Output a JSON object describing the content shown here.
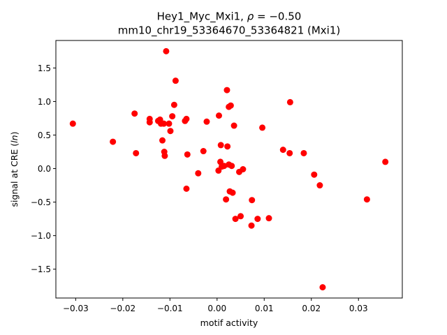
{
  "chart_data": {
    "type": "scatter",
    "title_line1_prefix": "Hey1_Myc_Mxi1, ",
    "title_rho_symbol": "ρ",
    "title_rho_value": " = −0.50",
    "title_line2": "mm10_chr19_53364670_53364821 (Mxi1)",
    "xlabel": "motif activity",
    "ylabel_prefix": "signal at CRE (",
    "ylabel_italic": "ln",
    "ylabel_suffix": ")",
    "xlim": [
      -0.0342,
      0.0393
    ],
    "ylim": [
      -1.93,
      1.91
    ],
    "x_ticks": [
      -0.03,
      -0.02,
      -0.01,
      0.0,
      0.01,
      0.02,
      0.03
    ],
    "x_tick_labels": [
      "−0.03",
      "−0.02",
      "−0.01",
      "0.00",
      "0.01",
      "0.02",
      "0.03"
    ],
    "y_ticks": [
      -1.5,
      -1.0,
      -0.5,
      0.0,
      0.5,
      1.0,
      1.5
    ],
    "y_tick_labels": [
      "−1.5",
      "−1.0",
      "−0.5",
      "0.0",
      "0.5",
      "1.0",
      "1.5"
    ],
    "grid": false,
    "marker_color": "#ff0000",
    "points": [
      {
        "x": -0.0306,
        "y": 0.67
      },
      {
        "x": -0.0221,
        "y": 0.4
      },
      {
        "x": -0.0175,
        "y": 0.82
      },
      {
        "x": -0.0172,
        "y": 0.23
      },
      {
        "x": -0.0143,
        "y": 0.74
      },
      {
        "x": -0.0143,
        "y": 0.69
      },
      {
        "x": -0.0125,
        "y": 0.71
      },
      {
        "x": -0.0121,
        "y": 0.73
      },
      {
        "x": -0.0119,
        "y": 0.67
      },
      {
        "x": -0.0116,
        "y": 0.42
      },
      {
        "x": -0.0113,
        "y": 0.67
      },
      {
        "x": -0.0112,
        "y": 0.25
      },
      {
        "x": -0.0111,
        "y": 0.19
      },
      {
        "x": -0.0108,
        "y": 1.75
      },
      {
        "x": -0.0102,
        "y": 0.67
      },
      {
        "x": -0.0099,
        "y": 0.56
      },
      {
        "x": -0.0095,
        "y": 0.78
      },
      {
        "x": -0.0091,
        "y": 0.95
      },
      {
        "x": -0.0088,
        "y": 1.31
      },
      {
        "x": -0.0068,
        "y": 0.71
      },
      {
        "x": -0.0065,
        "y": 0.74
      },
      {
        "x": -0.0063,
        "y": 0.21
      },
      {
        "x": -0.0065,
        "y": -0.3
      },
      {
        "x": -0.004,
        "y": -0.07
      },
      {
        "x": -0.0029,
        "y": 0.26
      },
      {
        "x": -0.0022,
        "y": 0.7
      },
      {
        "x": 0.0003,
        "y": -0.03
      },
      {
        "x": 0.0004,
        "y": 0.79
      },
      {
        "x": 0.0007,
        "y": 0.1
      },
      {
        "x": 0.0008,
        "y": 0.35
      },
      {
        "x": 0.001,
        "y": 0.03
      },
      {
        "x": 0.0015,
        "y": 0.04
      },
      {
        "x": 0.0019,
        "y": -0.46
      },
      {
        "x": 0.0021,
        "y": 1.17
      },
      {
        "x": 0.0022,
        "y": 0.33
      },
      {
        "x": 0.0025,
        "y": 0.92
      },
      {
        "x": 0.0025,
        "y": 0.06
      },
      {
        "x": 0.0027,
        "y": -0.34
      },
      {
        "x": 0.0029,
        "y": 0.94
      },
      {
        "x": 0.0031,
        "y": 0.04
      },
      {
        "x": 0.0033,
        "y": -0.36
      },
      {
        "x": 0.0036,
        "y": 0.64
      },
      {
        "x": 0.0039,
        "y": -0.75
      },
      {
        "x": 0.0047,
        "y": -0.05
      },
      {
        "x": 0.005,
        "y": -0.71
      },
      {
        "x": 0.0055,
        "y": -0.01
      },
      {
        "x": 0.0073,
        "y": -0.85
      },
      {
        "x": 0.0074,
        "y": -0.47
      },
      {
        "x": 0.0086,
        "y": -0.75
      },
      {
        "x": 0.0096,
        "y": 0.61
      },
      {
        "x": 0.011,
        "y": -0.74
      },
      {
        "x": 0.014,
        "y": 0.28
      },
      {
        "x": 0.0154,
        "y": 0.23
      },
      {
        "x": 0.0155,
        "y": 0.99
      },
      {
        "x": 0.0184,
        "y": 0.23
      },
      {
        "x": 0.0206,
        "y": -0.09
      },
      {
        "x": 0.0218,
        "y": -0.25
      },
      {
        "x": 0.0224,
        "y": -1.77
      },
      {
        "x": 0.0318,
        "y": -0.46
      },
      {
        "x": 0.0357,
        "y": 0.1
      }
    ]
  }
}
